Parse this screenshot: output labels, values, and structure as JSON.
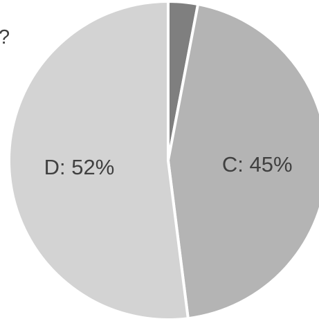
{
  "visible_text": {
    "clipped_title_fragment": "?"
  },
  "chart_data": {
    "type": "pie",
    "title": "?",
    "slices": [
      {
        "label": "",
        "value": 3,
        "color": "#7f7f7f",
        "label_text": ""
      },
      {
        "label": "C",
        "value": 45,
        "color": "#b4b4b4",
        "label_text": "C: 45%"
      },
      {
        "label": "D",
        "value": 52,
        "color": "#d3d3d3",
        "label_text": "D: 52%"
      }
    ],
    "start_angle_degrees": 0,
    "direction": "clockwise",
    "legend": "none"
  }
}
